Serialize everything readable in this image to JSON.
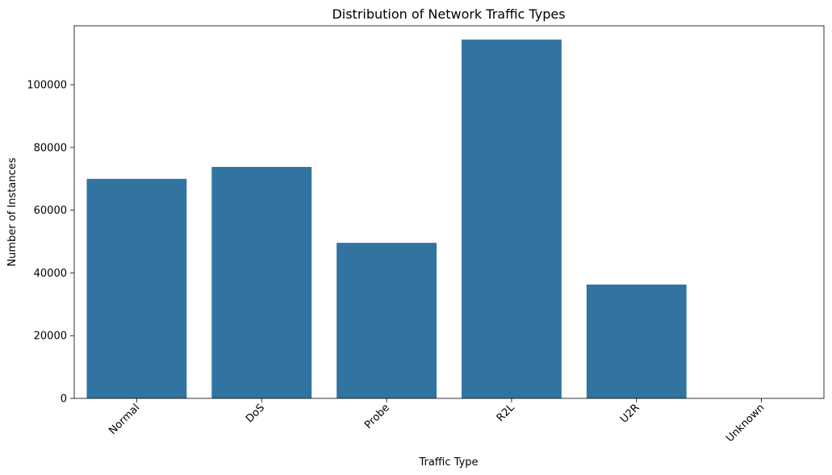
{
  "chart_data": {
    "type": "bar",
    "title": "Distribution of Network Traffic Types",
    "xlabel": "Traffic Type",
    "ylabel": "Number of Instances",
    "categories": [
      "Normal",
      "DoS",
      "Probe",
      "R2L",
      "U2R",
      "Unknown"
    ],
    "values": [
      70000,
      73800,
      49600,
      114400,
      36300,
      0
    ],
    "ylim": [
      0,
      118800
    ],
    "yticks": [
      0,
      20000,
      40000,
      60000,
      80000,
      100000
    ],
    "ytick_labels": [
      "0",
      "20000",
      "40000",
      "60000",
      "80000",
      "100000"
    ],
    "xtick_rotation": 45,
    "grid": false,
    "bar_color": "#3274a1"
  }
}
